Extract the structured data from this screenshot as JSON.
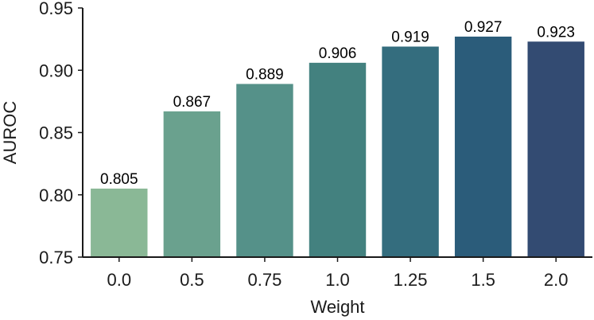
{
  "chart_data": {
    "type": "bar",
    "title": "",
    "xlabel": "Weight",
    "ylabel": "AUROC",
    "categories": [
      "0.0",
      "0.5",
      "0.75",
      "1.0",
      "1.25",
      "1.5",
      "2.0"
    ],
    "values": [
      0.805,
      0.867,
      0.889,
      0.906,
      0.919,
      0.927,
      0.923
    ],
    "data_labels": [
      "0.805",
      "0.867",
      "0.889",
      "0.906",
      "0.919",
      "0.927",
      "0.923"
    ],
    "colors": [
      "#8ab896",
      "#6aa18e",
      "#559189",
      "#43817f",
      "#346d7e",
      "#2b5c7a",
      "#334b72"
    ],
    "ylim": [
      0.75,
      0.95
    ],
    "yticks": [
      0.75,
      0.8,
      0.85,
      0.9,
      0.95
    ],
    "ytick_labels": [
      "0.75",
      "0.80",
      "0.85",
      "0.90",
      "0.95"
    ],
    "grid": false,
    "legend": "none"
  }
}
